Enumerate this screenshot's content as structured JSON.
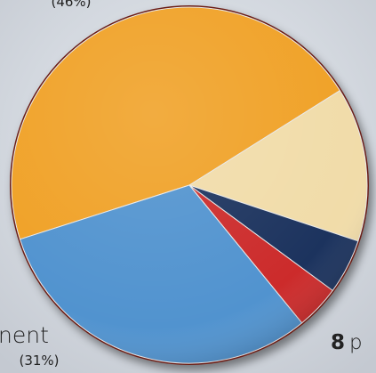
{
  "chart_data": {
    "type": "pie",
    "values": [
      46,
      14,
      5,
      4,
      31
    ],
    "colors": [
      "#f0a126",
      "#f1dca9",
      "#1c335e",
      "#cc2b2b",
      "#5193cf"
    ],
    "annotations": [
      "(46%)",
      "nent",
      "(31%)",
      "8",
      "p"
    ]
  }
}
